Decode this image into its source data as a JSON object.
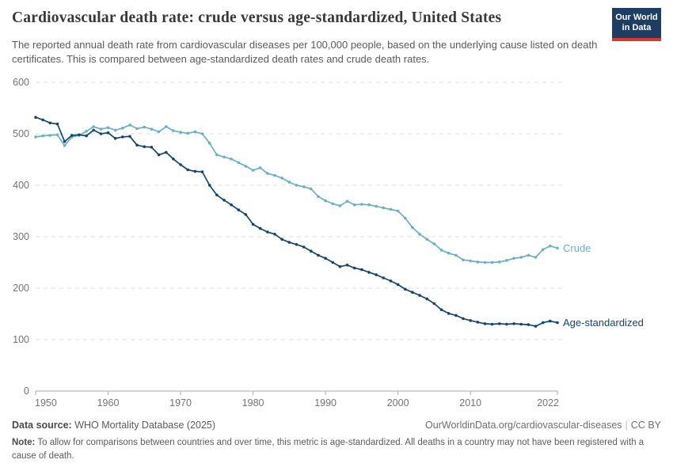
{
  "header": {
    "title": "Cardiovascular death rate: crude versus age-standardized, United States",
    "subtitle": "The reported annual death rate from cardiovascular diseases per 100,000 people, based on the underlying cause listed on death certificates. This is compared between age-standardized death rates and crude death rates.",
    "logo": {
      "line1": "Our World",
      "line2": "in Data",
      "bg_color": "#1d3d63",
      "stripe_color": "#dc3a2f"
    }
  },
  "chart_data": {
    "type": "line",
    "title": "Cardiovascular death rate: crude versus age-standardized, United States",
    "xlabel": "",
    "ylabel": "",
    "ylim": [
      0,
      600
    ],
    "yticks": [
      0,
      100,
      200,
      300,
      400,
      500,
      600
    ],
    "xticks": [
      1950,
      1960,
      1970,
      1980,
      1990,
      2000,
      2010,
      2022
    ],
    "grid": "horizontal-dashed",
    "legend_position": "end-of-line-labels",
    "x": [
      1950,
      1951,
      1952,
      1953,
      1954,
      1955,
      1956,
      1957,
      1958,
      1959,
      1960,
      1961,
      1962,
      1963,
      1964,
      1965,
      1966,
      1967,
      1968,
      1969,
      1970,
      1971,
      1972,
      1973,
      1974,
      1975,
      1976,
      1977,
      1978,
      1979,
      1980,
      1981,
      1982,
      1983,
      1984,
      1985,
      1986,
      1987,
      1988,
      1989,
      1990,
      1991,
      1992,
      1993,
      1994,
      1995,
      1996,
      1997,
      1998,
      1999,
      2000,
      2001,
      2002,
      2003,
      2004,
      2005,
      2006,
      2007,
      2008,
      2009,
      2010,
      2011,
      2012,
      2013,
      2014,
      2015,
      2016,
      2017,
      2018,
      2019,
      2020,
      2021,
      2022
    ],
    "series": [
      {
        "name": "Crude",
        "color": "#69b1c3",
        "values": [
          494,
          496,
          497,
          498,
          477,
          494,
          497,
          505,
          514,
          509,
          512,
          507,
          511,
          517,
          510,
          513,
          509,
          504,
          514,
          506,
          503,
          501,
          504,
          500,
          482,
          459,
          455,
          451,
          444,
          437,
          429,
          434,
          423,
          419,
          414,
          406,
          400,
          397,
          393,
          378,
          370,
          364,
          360,
          369,
          362,
          363,
          362,
          359,
          356,
          353,
          350,
          336,
          318,
          305,
          295,
          286,
          274,
          268,
          264,
          255,
          253,
          251,
          250,
          250,
          251,
          254,
          258,
          260,
          264,
          260,
          275,
          282,
          278
        ]
      },
      {
        "name": "Age-standardized",
        "color": "#14456e",
        "values": [
          532,
          527,
          521,
          519,
          485,
          497,
          498,
          496,
          507,
          500,
          502,
          491,
          494,
          495,
          478,
          475,
          474,
          459,
          464,
          451,
          440,
          430,
          427,
          426,
          400,
          381,
          371,
          362,
          352,
          343,
          324,
          316,
          309,
          305,
          295,
          289,
          285,
          280,
          272,
          264,
          258,
          250,
          242,
          245,
          239,
          236,
          231,
          226,
          220,
          214,
          207,
          198,
          192,
          186,
          179,
          170,
          158,
          151,
          147,
          141,
          137,
          134,
          131,
          130,
          131,
          130,
          131,
          130,
          129,
          126,
          133,
          136,
          133
        ]
      }
    ],
    "axis_color": "#a9a9a9",
    "gridline_color": "#dcdcdc",
    "tick_label_color": "#737373"
  },
  "footer": {
    "source_label": "Data source:",
    "source_value": " WHO Mortality Database (2025)",
    "link": "OurWorldinData.org/cardiovascular-diseases",
    "separator": "|",
    "license": "CC BY",
    "note_label": "Note:",
    "note_value": " To allow for comparisons between countries and over time, this metric is age-standardized. All deaths in a country may not have been registered with a cause of death."
  }
}
